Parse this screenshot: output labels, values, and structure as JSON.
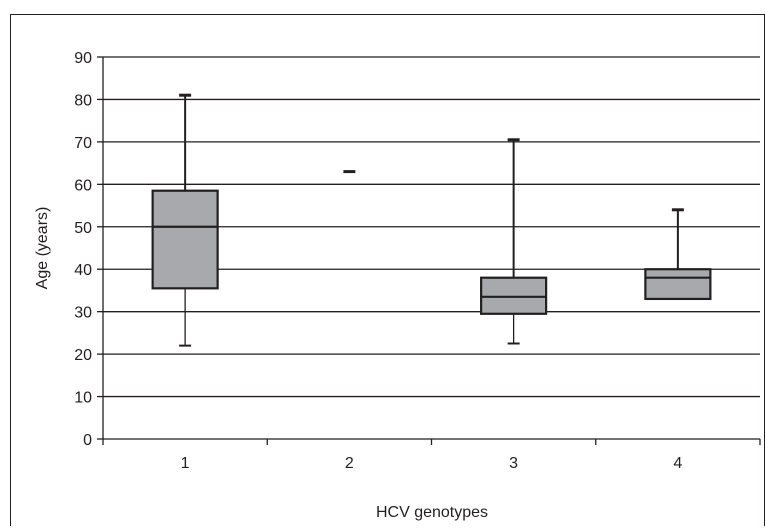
{
  "chart_data": {
    "type": "box",
    "categories": [
      "1",
      "2",
      "3",
      "4"
    ],
    "xlabel": "HCV genotypes",
    "ylabel": "Age (years)",
    "ylim": [
      0,
      90
    ],
    "yticks": [
      0,
      10,
      20,
      30,
      40,
      50,
      60,
      70,
      80,
      90
    ],
    "grid": "horizontal",
    "boxes": [
      {
        "category": "1",
        "min": 22,
        "q1": 35.5,
        "median": 50,
        "q3": 58.5,
        "max": 81
      },
      {
        "category": "2",
        "min": 63,
        "q1": 63,
        "median": 63,
        "q3": 63,
        "max": 63
      },
      {
        "category": "3",
        "min": 22.5,
        "q1": 29.5,
        "median": 33.5,
        "q3": 38,
        "max": 70.5
      },
      {
        "category": "4",
        "min": 33,
        "q1": 33,
        "median": 38,
        "q3": 40,
        "max": 54
      }
    ],
    "colors": {
      "box_fill": "#a7a9ac",
      "line": "#231f20",
      "grid": "#231f20",
      "frame": "#231f20"
    }
  }
}
